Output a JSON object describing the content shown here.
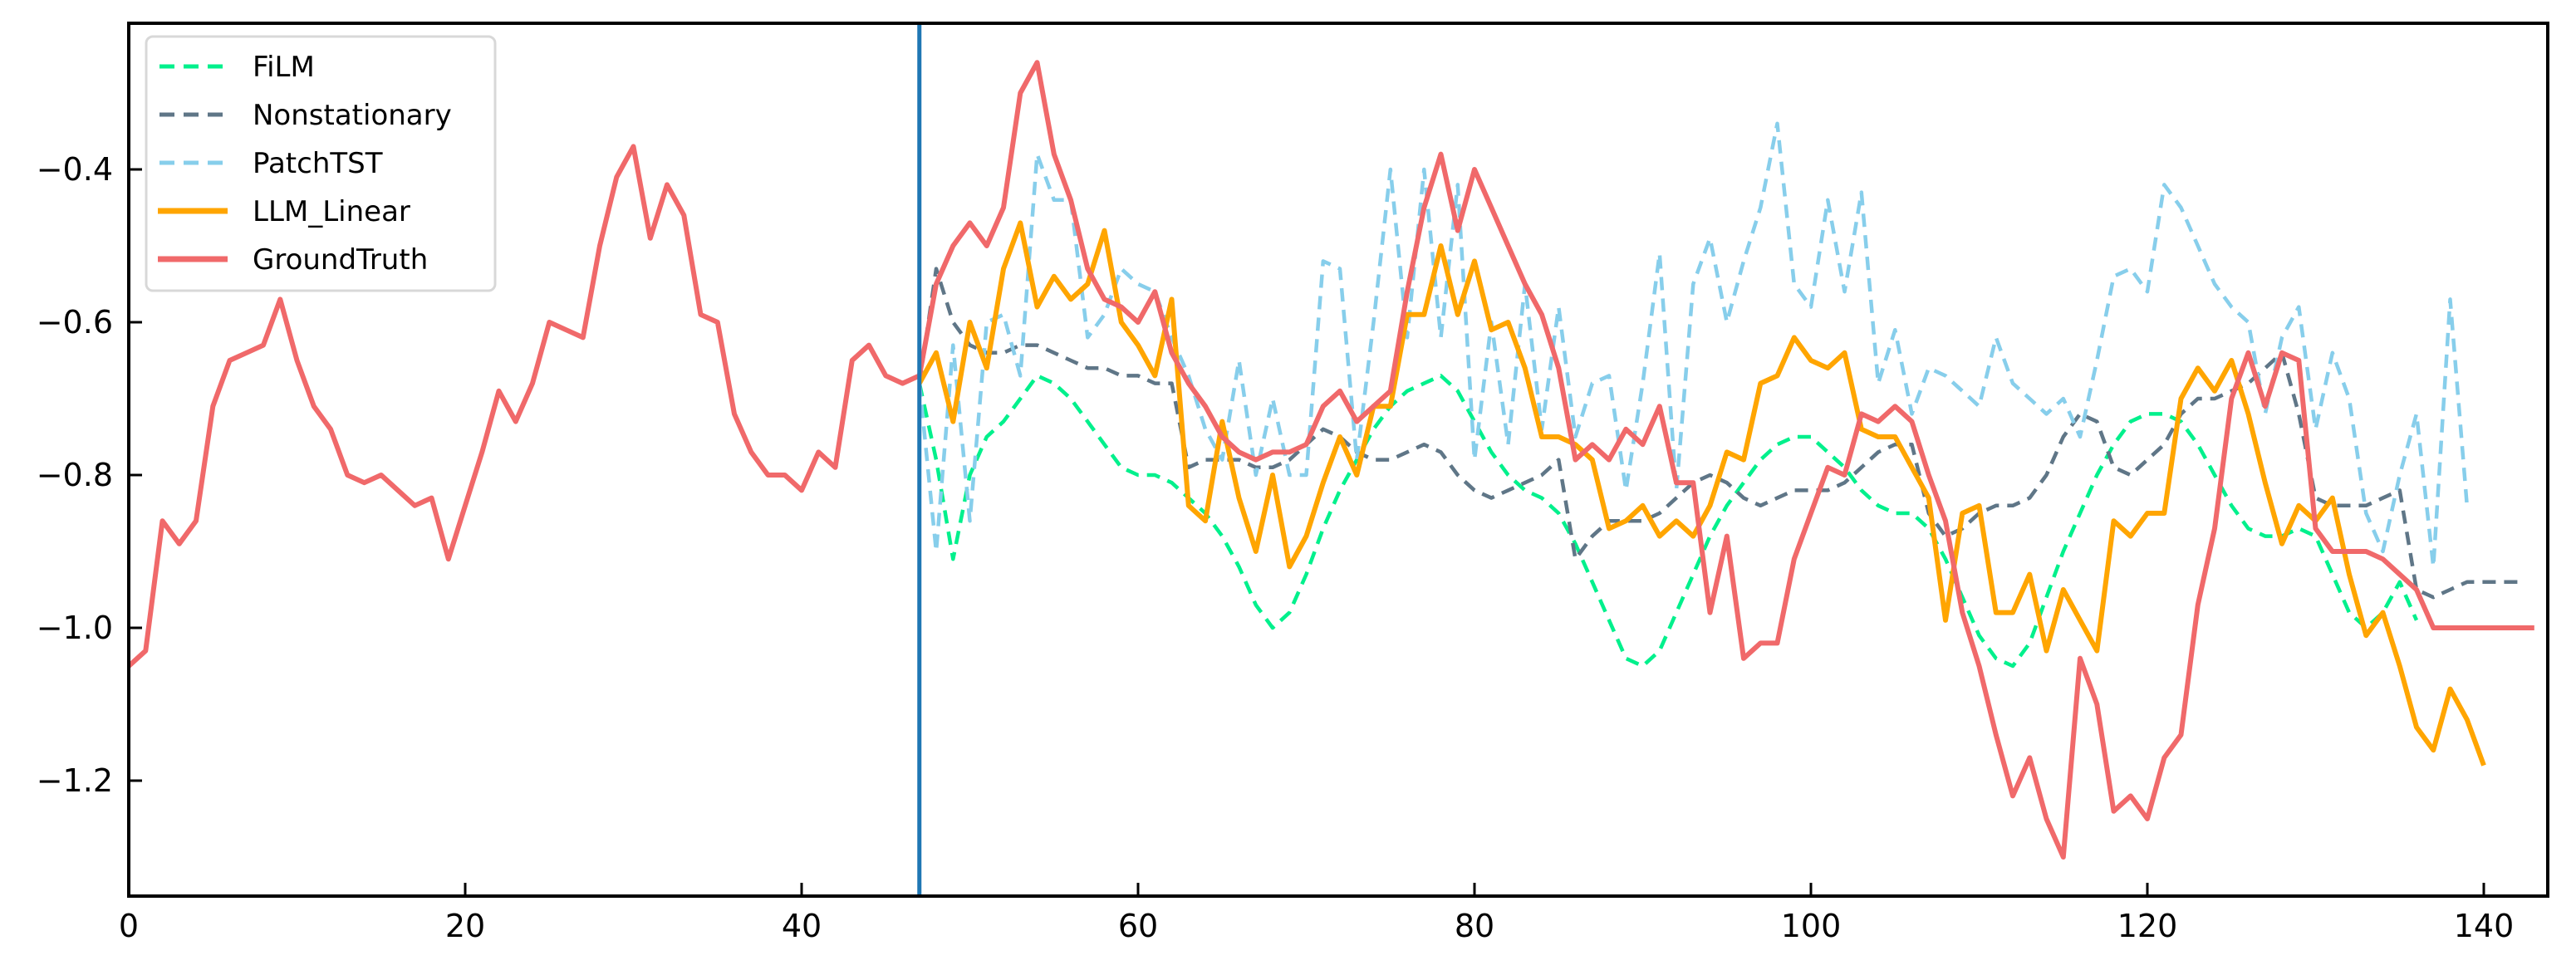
{
  "chart_data": {
    "type": "line",
    "title": "",
    "xlabel": "",
    "ylabel": "",
    "xlim": [
      0,
      143.5
    ],
    "ylim": [
      -1.35,
      -0.21
    ],
    "grid": false,
    "legend_position": "upper left",
    "x_ticks": [
      0,
      20,
      40,
      60,
      80,
      100,
      120,
      140
    ],
    "x_tick_labels": [
      "0",
      "20",
      "40",
      "60",
      "80",
      "100",
      "120",
      "140"
    ],
    "y_ticks": [
      -0.4,
      -0.6,
      -0.8,
      -1.0,
      -1.2
    ],
    "y_tick_labels": [
      "−0.4",
      "−0.6",
      "−0.8",
      "−1.0",
      "−1.2"
    ],
    "vertical_line": {
      "x": 47,
      "color": "#1f77b4"
    },
    "forecast_start": 47,
    "series": [
      {
        "name": "FiLM",
        "color": "#00f08c",
        "style": "dashed",
        "x_start": 47,
        "values": [
          -0.68,
          -0.78,
          -0.91,
          -0.8,
          -0.75,
          -0.73,
          -0.7,
          -0.67,
          -0.68,
          -0.7,
          -0.73,
          -0.76,
          -0.79,
          -0.8,
          -0.8,
          -0.81,
          -0.83,
          -0.85,
          -0.88,
          -0.92,
          -0.97,
          -1.0,
          -0.98,
          -0.93,
          -0.87,
          -0.82,
          -0.78,
          -0.74,
          -0.71,
          -0.69,
          -0.68,
          -0.67,
          -0.69,
          -0.73,
          -0.77,
          -0.8,
          -0.82,
          -0.83,
          -0.85,
          -0.89,
          -0.94,
          -0.99,
          -1.04,
          -1.05,
          -1.03,
          -0.98,
          -0.93,
          -0.88,
          -0.84,
          -0.81,
          -0.78,
          -0.76,
          -0.75,
          -0.75,
          -0.77,
          -0.79,
          -0.82,
          -0.84,
          -0.85,
          -0.85,
          -0.87,
          -0.91,
          -0.96,
          -1.01,
          -1.04,
          -1.05,
          -1.02,
          -0.96,
          -0.9,
          -0.85,
          -0.8,
          -0.76,
          -0.73,
          -0.72,
          -0.72,
          -0.73,
          -0.76,
          -0.8,
          -0.84,
          -0.87,
          -0.88,
          -0.88,
          -0.87,
          -0.88,
          -0.93,
          -0.98,
          -1.0,
          -0.98,
          -0.94,
          -0.99
        ]
      },
      {
        "name": "Nonstationary",
        "color": "#5f7687",
        "style": "dashed",
        "x_start": 47,
        "values": [
          -0.68,
          -0.53,
          -0.6,
          -0.63,
          -0.64,
          -0.64,
          -0.63,
          -0.63,
          -0.64,
          -0.65,
          -0.66,
          -0.66,
          -0.67,
          -0.67,
          -0.68,
          -0.68,
          -0.79,
          -0.78,
          -0.78,
          -0.78,
          -0.79,
          -0.79,
          -0.78,
          -0.76,
          -0.74,
          -0.75,
          -0.77,
          -0.78,
          -0.78,
          -0.77,
          -0.76,
          -0.77,
          -0.8,
          -0.82,
          -0.83,
          -0.82,
          -0.81,
          -0.8,
          -0.78,
          -0.91,
          -0.88,
          -0.86,
          -0.86,
          -0.86,
          -0.85,
          -0.83,
          -0.81,
          -0.8,
          -0.81,
          -0.83,
          -0.84,
          -0.83,
          -0.82,
          -0.82,
          -0.82,
          -0.81,
          -0.79,
          -0.77,
          -0.76,
          -0.76,
          -0.85,
          -0.88,
          -0.87,
          -0.85,
          -0.84,
          -0.84,
          -0.83,
          -0.8,
          -0.75,
          -0.72,
          -0.73,
          -0.79,
          -0.8,
          -0.78,
          -0.76,
          -0.72,
          -0.7,
          -0.7,
          -0.69,
          -0.68,
          -0.66,
          -0.64,
          -0.72,
          -0.83,
          -0.84,
          -0.84,
          -0.84,
          -0.83,
          -0.82,
          -0.95,
          -0.96,
          -0.95,
          -0.94,
          -0.94,
          -0.94,
          -0.94
        ]
      },
      {
        "name": "PatchTST",
        "color": "#87ceeb",
        "style": "dashed",
        "x_start": 47,
        "values": [
          -0.68,
          -0.9,
          -0.63,
          -0.86,
          -0.6,
          -0.59,
          -0.67,
          -0.38,
          -0.44,
          -0.44,
          -0.62,
          -0.59,
          -0.53,
          -0.55,
          -0.56,
          -0.62,
          -0.67,
          -0.74,
          -0.78,
          -0.65,
          -0.8,
          -0.7,
          -0.8,
          -0.8,
          -0.52,
          -0.53,
          -0.78,
          -0.6,
          -0.4,
          -0.62,
          -0.4,
          -0.62,
          -0.42,
          -0.78,
          -0.6,
          -0.76,
          -0.55,
          -0.74,
          -0.58,
          -0.75,
          -0.68,
          -0.67,
          -0.82,
          -0.68,
          -0.51,
          -0.82,
          -0.55,
          -0.49,
          -0.6,
          -0.52,
          -0.45,
          -0.34,
          -0.55,
          -0.58,
          -0.44,
          -0.56,
          -0.43,
          -0.68,
          -0.61,
          -0.72,
          -0.66,
          -0.67,
          -0.69,
          -0.71,
          -0.62,
          -0.68,
          -0.7,
          -0.72,
          -0.7,
          -0.75,
          -0.65,
          -0.54,
          -0.53,
          -0.56,
          -0.42,
          -0.45,
          -0.5,
          -0.55,
          -0.58,
          -0.6,
          -0.72,
          -0.62,
          -0.58,
          -0.74,
          -0.64,
          -0.7,
          -0.85,
          -0.9,
          -0.8,
          -0.72,
          -0.92,
          -0.57,
          -0.84
        ]
      },
      {
        "name": "LLM_Linear",
        "color": "#ffa500",
        "style": "solid",
        "x_start": 47,
        "values": [
          -0.68,
          -0.64,
          -0.73,
          -0.6,
          -0.66,
          -0.53,
          -0.47,
          -0.58,
          -0.54,
          -0.57,
          -0.55,
          -0.48,
          -0.6,
          -0.63,
          -0.67,
          -0.57,
          -0.84,
          -0.86,
          -0.73,
          -0.83,
          -0.9,
          -0.8,
          -0.92,
          -0.88,
          -0.81,
          -0.75,
          -0.8,
          -0.71,
          -0.71,
          -0.59,
          -0.59,
          -0.5,
          -0.59,
          -0.52,
          -0.61,
          -0.6,
          -0.66,
          -0.75,
          -0.75,
          -0.76,
          -0.78,
          -0.87,
          -0.86,
          -0.84,
          -0.88,
          -0.86,
          -0.88,
          -0.84,
          -0.77,
          -0.78,
          -0.68,
          -0.67,
          -0.62,
          -0.65,
          -0.66,
          -0.64,
          -0.74,
          -0.75,
          -0.75,
          -0.79,
          -0.83,
          -0.99,
          -0.85,
          -0.84,
          -0.98,
          -0.98,
          -0.93,
          -1.03,
          -0.95,
          -0.99,
          -1.03,
          -0.86,
          -0.88,
          -0.85,
          -0.85,
          -0.7,
          -0.66,
          -0.69,
          -0.65,
          -0.72,
          -0.81,
          -0.89,
          -0.84,
          -0.86,
          -0.83,
          -0.93,
          -1.01,
          -0.98,
          -1.05,
          -1.13,
          -1.16,
          -1.08,
          -1.12,
          -1.18
        ]
      },
      {
        "name": "GroundTruth",
        "color": "#f0696a",
        "style": "solid",
        "x_start": 0,
        "values": [
          -1.05,
          -1.03,
          -0.86,
          -0.89,
          -0.86,
          -0.71,
          -0.65,
          -0.64,
          -0.63,
          -0.57,
          -0.65,
          -0.71,
          -0.74,
          -0.8,
          -0.81,
          -0.8,
          -0.82,
          -0.84,
          -0.83,
          -0.91,
          -0.84,
          -0.77,
          -0.69,
          -0.73,
          -0.68,
          -0.6,
          -0.61,
          -0.62,
          -0.5,
          -0.41,
          -0.37,
          -0.49,
          -0.42,
          -0.46,
          -0.59,
          -0.6,
          -0.72,
          -0.77,
          -0.8,
          -0.8,
          -0.82,
          -0.77,
          -0.79,
          -0.65,
          -0.63,
          -0.67,
          -0.68,
          -0.67,
          -0.55,
          -0.5,
          -0.47,
          -0.5,
          -0.45,
          -0.3,
          -0.26,
          -0.38,
          -0.44,
          -0.53,
          -0.57,
          -0.58,
          -0.6,
          -0.56,
          -0.64,
          -0.68,
          -0.71,
          -0.75,
          -0.77,
          -0.78,
          -0.77,
          -0.77,
          -0.76,
          -0.71,
          -0.69,
          -0.73,
          -0.71,
          -0.69,
          -0.56,
          -0.45,
          -0.38,
          -0.48,
          -0.4,
          -0.45,
          -0.5,
          -0.55,
          -0.59,
          -0.66,
          -0.78,
          -0.76,
          -0.78,
          -0.74,
          -0.76,
          -0.71,
          -0.81,
          -0.81,
          -0.98,
          -0.88,
          -1.04,
          -1.02,
          -1.02,
          -0.91,
          -0.85,
          -0.79,
          -0.8,
          -0.72,
          -0.73,
          -0.71,
          -0.73,
          -0.8,
          -0.86,
          -0.98,
          -1.05,
          -1.14,
          -1.22,
          -1.17,
          -1.25,
          -1.3,
          -1.04,
          -1.1,
          -1.24,
          -1.22,
          -1.25,
          -1.17,
          -1.14,
          -0.97,
          -0.87,
          -0.7,
          -0.64,
          -0.71,
          -0.64,
          -0.65,
          -0.87,
          -0.9,
          -0.9,
          -0.9,
          -0.91,
          -0.93,
          -0.95,
          -1.0,
          -1.0,
          -1.0,
          -1.0,
          -1.0,
          -1.0,
          -1.0
        ]
      }
    ]
  },
  "legend": {
    "items": [
      {
        "label": "FiLM",
        "color": "#00f08c",
        "style": "dashed"
      },
      {
        "label": "Nonstationary",
        "color": "#5f7687",
        "style": "dashed"
      },
      {
        "label": "PatchTST",
        "color": "#87ceeb",
        "style": "dashed"
      },
      {
        "label": "LLM_Linear",
        "color": "#ffa500",
        "style": "solid"
      },
      {
        "label": "GroundTruth",
        "color": "#f0696a",
        "style": "solid"
      }
    ]
  },
  "axes": {
    "x_tick_labels": [
      "0",
      "20",
      "40",
      "60",
      "80",
      "100",
      "120",
      "140"
    ],
    "y_tick_labels": [
      "−0.4",
      "−0.6",
      "−0.8",
      "−1.0",
      "−1.2"
    ]
  }
}
